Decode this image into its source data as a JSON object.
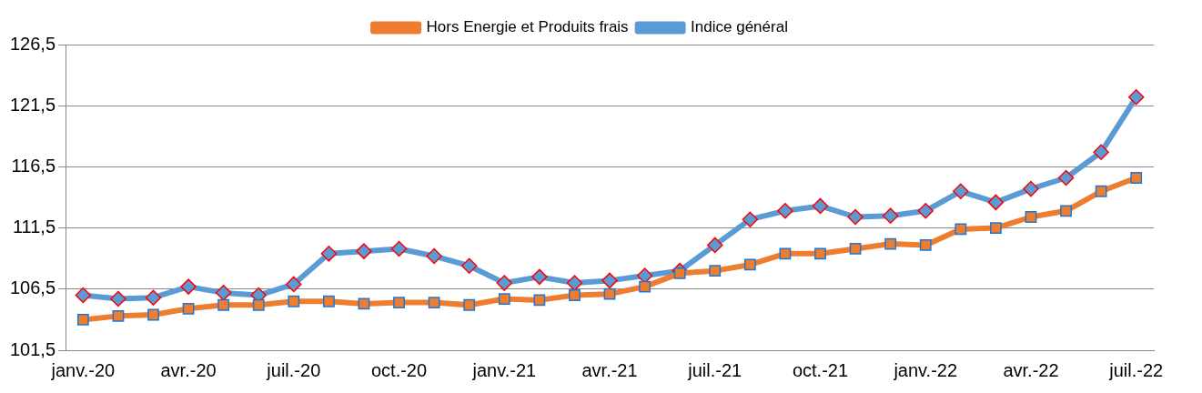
{
  "chart_data": {
    "type": "line",
    "categories": [
      "janv.-20",
      null,
      null,
      "avr.-20",
      null,
      null,
      "juil.-20",
      null,
      null,
      "oct.-20",
      null,
      null,
      "janv.-21",
      null,
      null,
      "avr.-21",
      null,
      null,
      "juil.-21",
      null,
      null,
      "oct.-21",
      null,
      null,
      "janv.-22",
      null,
      null,
      "avr.-22",
      null,
      null,
      "juil.-22"
    ],
    "series": [
      {
        "name": "Indice général",
        "color": "#5b9bd5",
        "marker": "diamond",
        "values": [
          106.0,
          105.7,
          105.8,
          106.7,
          106.2,
          106.0,
          106.9,
          109.4,
          109.6,
          109.8,
          109.2,
          108.4,
          107.0,
          107.5,
          107.0,
          107.2,
          107.6,
          108.0,
          110.1,
          112.2,
          112.9,
          113.3,
          112.4,
          112.5,
          112.9,
          114.5,
          113.6,
          114.7,
          115.6,
          117.7,
          122.2
        ]
      },
      {
        "name": "Hors Energie et Produits frais",
        "color": "#ed7d31",
        "marker": "square",
        "values": [
          104.0,
          104.3,
          104.4,
          104.9,
          105.2,
          105.2,
          105.5,
          105.5,
          105.3,
          105.4,
          105.4,
          105.2,
          105.7,
          105.6,
          106.0,
          106.1,
          106.7,
          107.8,
          108.0,
          108.5,
          109.4,
          109.4,
          109.8,
          110.2,
          110.1,
          111.4,
          111.5,
          112.4,
          112.9,
          114.5,
          115.6
        ]
      }
    ],
    "ylim": [
      101.5,
      126.5
    ],
    "yticks": [
      {
        "value": 101.5,
        "label": "101,5"
      },
      {
        "value": 106.5,
        "label": "106,5"
      },
      {
        "value": 111.5,
        "label": "111,5"
      },
      {
        "value": 116.5,
        "label": "116,5"
      },
      {
        "value": 121.5,
        "label": "121,5"
      },
      {
        "value": 126.5,
        "label": "126,5"
      }
    ],
    "grid": "y",
    "legend": "top"
  }
}
